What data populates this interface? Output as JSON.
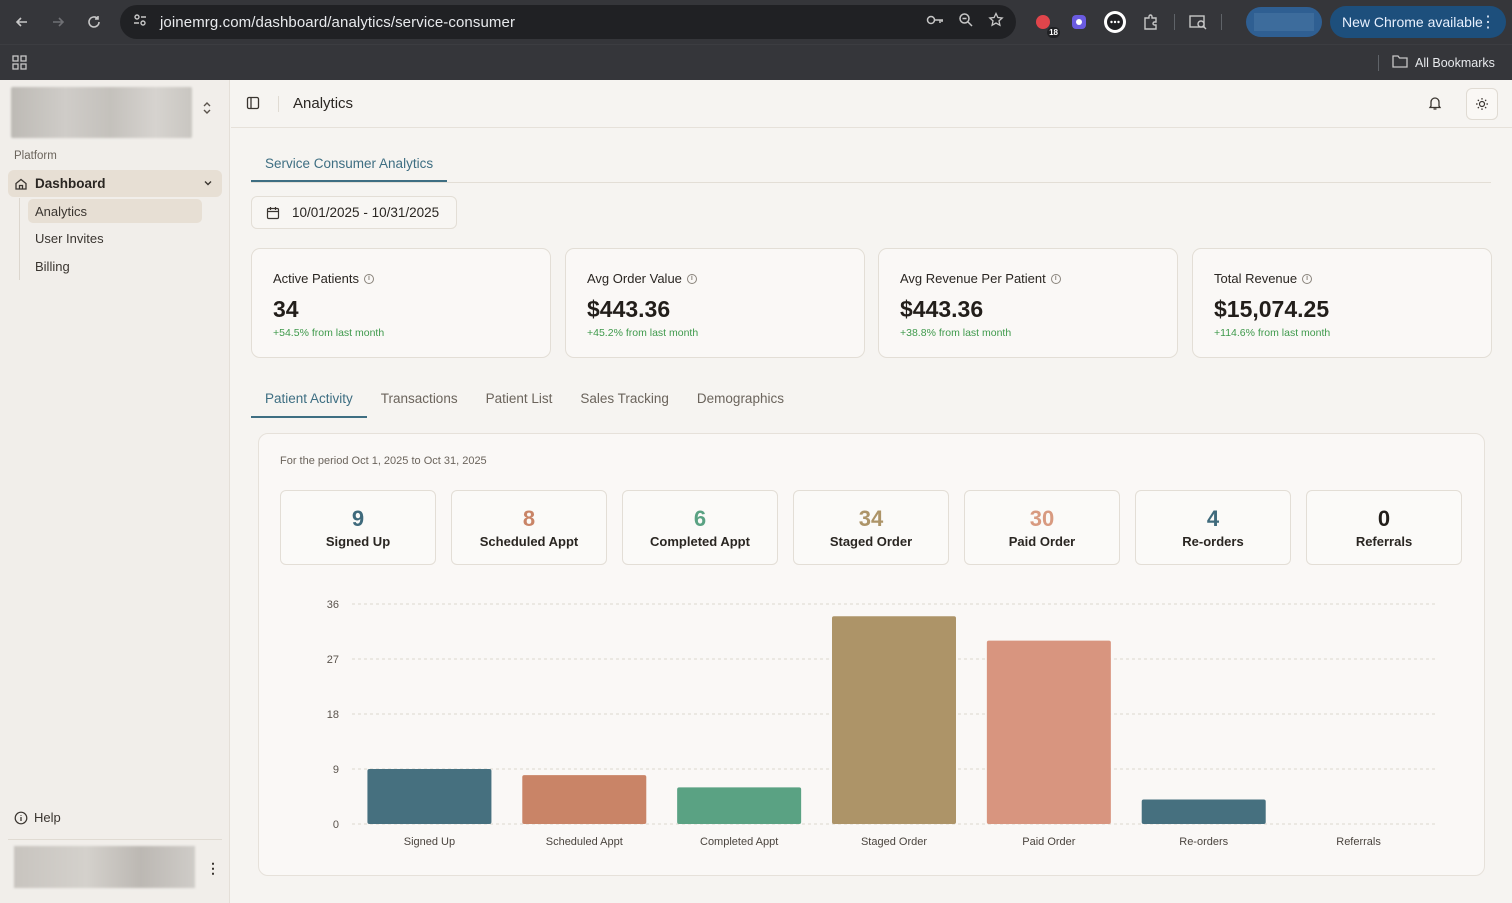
{
  "browser": {
    "url": "joinemrg.com/dashboard/analytics/service-consumer",
    "update_label": "New Chrome available",
    "extension_badge": "18",
    "bookmarks_label": "All Bookmarks"
  },
  "sidebar": {
    "section_label": "Platform",
    "dashboard_label": "Dashboard",
    "items": [
      {
        "label": "Analytics",
        "active": true
      },
      {
        "label": "User Invites",
        "active": false
      },
      {
        "label": "Billing",
        "active": false
      }
    ],
    "help_label": "Help"
  },
  "header": {
    "title": "Analytics"
  },
  "top_tab": {
    "label": "Service Consumer Analytics"
  },
  "date_range": "10/01/2025 - 10/31/2025",
  "kpis": [
    {
      "label": "Active Patients",
      "value": "34",
      "delta": "+54.5% from last month"
    },
    {
      "label": "Avg Order Value",
      "value": "$443.36",
      "delta": "+45.2% from last month"
    },
    {
      "label": "Avg Revenue Per Patient",
      "value": "$443.36",
      "delta": "+38.8% from last month"
    },
    {
      "label": "Total Revenue",
      "value": "$15,074.25",
      "delta": "+114.6% from last month"
    }
  ],
  "sub_tabs": [
    {
      "label": "Patient Activity",
      "active": true
    },
    {
      "label": "Transactions",
      "active": false
    },
    {
      "label": "Patient List",
      "active": false
    },
    {
      "label": "Sales Tracking",
      "active": false
    },
    {
      "label": "Demographics",
      "active": false
    }
  ],
  "period_text": "For the period Oct 1, 2025 to Oct 31, 2025",
  "stats": [
    {
      "label": "Signed Up",
      "value": "9",
      "color": "#3f6a7c"
    },
    {
      "label": "Scheduled Appt",
      "value": "8",
      "color": "#c98467"
    },
    {
      "label": "Completed Appt",
      "value": "6",
      "color": "#5aa283"
    },
    {
      "label": "Staged Order",
      "value": "34",
      "color": "#ad9468"
    },
    {
      "label": "Paid Order",
      "value": "30",
      "color": "#d89a80"
    },
    {
      "label": "Re-orders",
      "value": "4",
      "color": "#3f6a7c"
    },
    {
      "label": "Referrals",
      "value": "0",
      "color": "#221e1a"
    }
  ],
  "chart_data": {
    "type": "bar",
    "categories": [
      "Signed Up",
      "Scheduled Appt",
      "Completed Appt",
      "Staged Order",
      "Paid Order",
      "Re-orders",
      "Referrals"
    ],
    "values": [
      9,
      8,
      6,
      34,
      30,
      4,
      0
    ],
    "colors": [
      "#46707f",
      "#c98467",
      "#5aa283",
      "#ad9468",
      "#d8957f",
      "#46707f",
      "#46707f"
    ],
    "yticks": [
      0,
      9,
      18,
      27,
      36
    ],
    "ylim": [
      0,
      36
    ],
    "grid": true,
    "legend": false
  }
}
